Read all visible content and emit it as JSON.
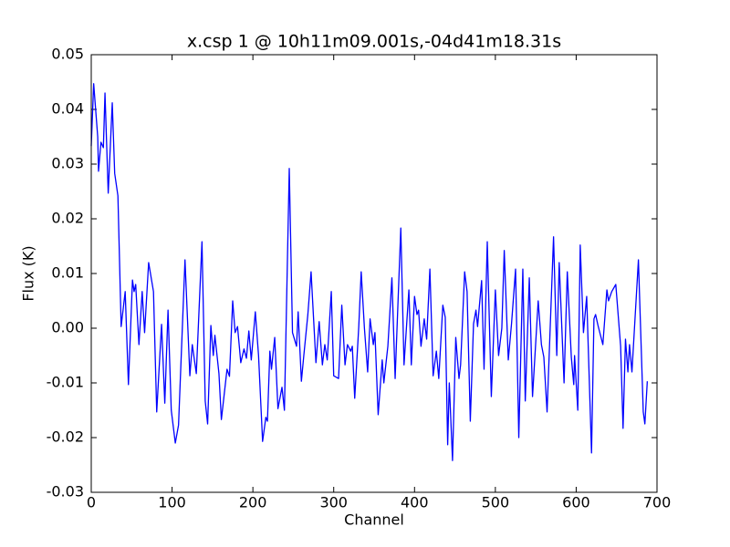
{
  "chart_data": {
    "type": "line",
    "title": "x.csp 1 @ 10h11m09.001s,-04d41m18.31s",
    "x_label": "Channel",
    "y_label": "Flux (K)",
    "color": "#0000ff",
    "x": [
      0,
      3,
      8,
      9,
      12,
      15,
      17,
      21,
      26,
      29,
      33,
      37,
      42,
      46,
      51,
      53,
      55,
      59,
      63,
      66,
      71,
      77,
      81,
      87,
      91,
      95,
      99,
      104,
      108,
      116,
      122,
      125,
      130,
      137,
      141,
      144,
      148,
      151,
      153,
      158,
      161,
      168,
      171,
      175,
      178,
      181,
      185,
      189,
      192,
      195,
      198,
      203,
      207,
      212,
      216,
      218,
      221,
      223,
      227,
      231,
      236,
      239,
      245,
      249,
      254,
      256,
      260,
      263,
      268,
      272,
      278,
      282,
      286,
      289,
      292,
      297,
      300,
      306,
      310,
      314,
      317,
      321,
      323,
      326,
      331,
      334,
      338,
      342,
      345,
      349,
      351,
      355,
      360,
      362,
      367,
      372,
      376,
      383,
      387,
      393,
      396,
      400,
      403,
      405,
      408,
      412,
      415,
      419,
      423,
      427,
      430,
      435,
      438,
      441,
      443,
      447,
      451,
      455,
      457,
      462,
      465,
      469,
      473,
      476,
      478,
      483,
      486,
      490,
      495,
      500,
      504,
      508,
      511,
      516,
      520,
      525,
      529,
      534,
      537,
      542,
      546,
      553,
      557,
      560,
      564,
      572,
      576,
      579,
      585,
      589,
      594,
      597,
      598,
      602,
      605,
      609,
      613,
      619,
      622,
      624,
      627,
      633,
      638,
      640,
      644,
      649,
      655,
      658,
      661,
      664,
      666,
      669,
      677,
      683,
      685,
      688
    ],
    "values": [
      0.0333,
      0.0447,
      0.035,
      0.0287,
      0.034,
      0.033,
      0.043,
      0.0247,
      0.0412,
      0.0283,
      0.0242,
      0.0003,
      0.0067,
      -0.0103,
      0.0088,
      0.0067,
      0.008,
      -0.003,
      0.0067,
      -0.0008,
      0.012,
      0.0067,
      -0.0153,
      0.0007,
      -0.0137,
      0.0033,
      -0.015,
      -0.021,
      -0.0177,
      0.0125,
      -0.0087,
      -0.003,
      -0.0083,
      0.0158,
      -0.0133,
      -0.0175,
      0.0005,
      -0.005,
      -0.0013,
      -0.0083,
      -0.0167,
      -0.0075,
      -0.0088,
      0.005,
      -0.0008,
      0.0003,
      -0.0063,
      -0.0038,
      -0.0055,
      -0.0005,
      -0.0058,
      0.003,
      -0.005,
      -0.0207,
      -0.0163,
      -0.017,
      -0.0042,
      -0.0075,
      -0.0017,
      -0.0147,
      -0.0108,
      -0.015,
      0.0292,
      -0.0008,
      -0.0033,
      0.003,
      -0.0097,
      -0.005,
      0.0025,
      0.0103,
      -0.0063,
      0.0012,
      -0.0067,
      -0.003,
      -0.0058,
      0.0067,
      -0.0087,
      -0.0092,
      0.0042,
      -0.0067,
      -0.003,
      -0.0042,
      -0.0033,
      -0.0128,
      0.0003,
      0.0103,
      0,
      -0.008,
      0.0017,
      -0.003,
      -0.0008,
      -0.0158,
      -0.0058,
      -0.01,
      -0.0033,
      0.0092,
      -0.0092,
      0.0183,
      -0.0067,
      0.007,
      -0.0067,
      0.0058,
      0.0025,
      0.0033,
      -0.0033,
      0.0017,
      -0.002,
      0.0108,
      -0.0087,
      -0.0042,
      -0.0092,
      0.0042,
      0.002,
      -0.0213,
      -0.01,
      -0.0242,
      -0.0017,
      -0.0092,
      -0.0067,
      0.0103,
      0.0067,
      -0.017,
      0.0008,
      0.0033,
      0.0003,
      0.0087,
      -0.0075,
      0.0158,
      -0.0125,
      0.007,
      -0.005,
      0,
      0.0142,
      -0.0058,
      0.0008,
      0.0108,
      -0.02,
      0.0108,
      -0.0133,
      0.0092,
      -0.0125,
      0.005,
      -0.003,
      -0.0053,
      -0.0153,
      0.0167,
      -0.005,
      0.012,
      -0.01,
      0.0103,
      -0.0053,
      -0.0103,
      -0.005,
      -0.015,
      0.0152,
      -0.0008,
      0.0058,
      -0.0228,
      0.0017,
      0.0025,
      0.0005,
      -0.003,
      0.007,
      0.005,
      0.0067,
      0.008,
      -0.0033,
      -0.0183,
      -0.002,
      -0.008,
      -0.003,
      -0.008,
      0.0125,
      -0.0153,
      -0.0175,
      -0.0097
    ],
    "xlim": [
      0,
      700
    ],
    "xticks": [
      0,
      100,
      200,
      300,
      400,
      500,
      600,
      700
    ],
    "ylim": [
      -0.03,
      0.05
    ],
    "yticks": [
      -0.03,
      -0.02,
      -0.01,
      {
        "value": 0,
        "label": "0.00"
      },
      0.01,
      0.02,
      0.03,
      0.04,
      0.05
    ],
    "grid": false
  }
}
